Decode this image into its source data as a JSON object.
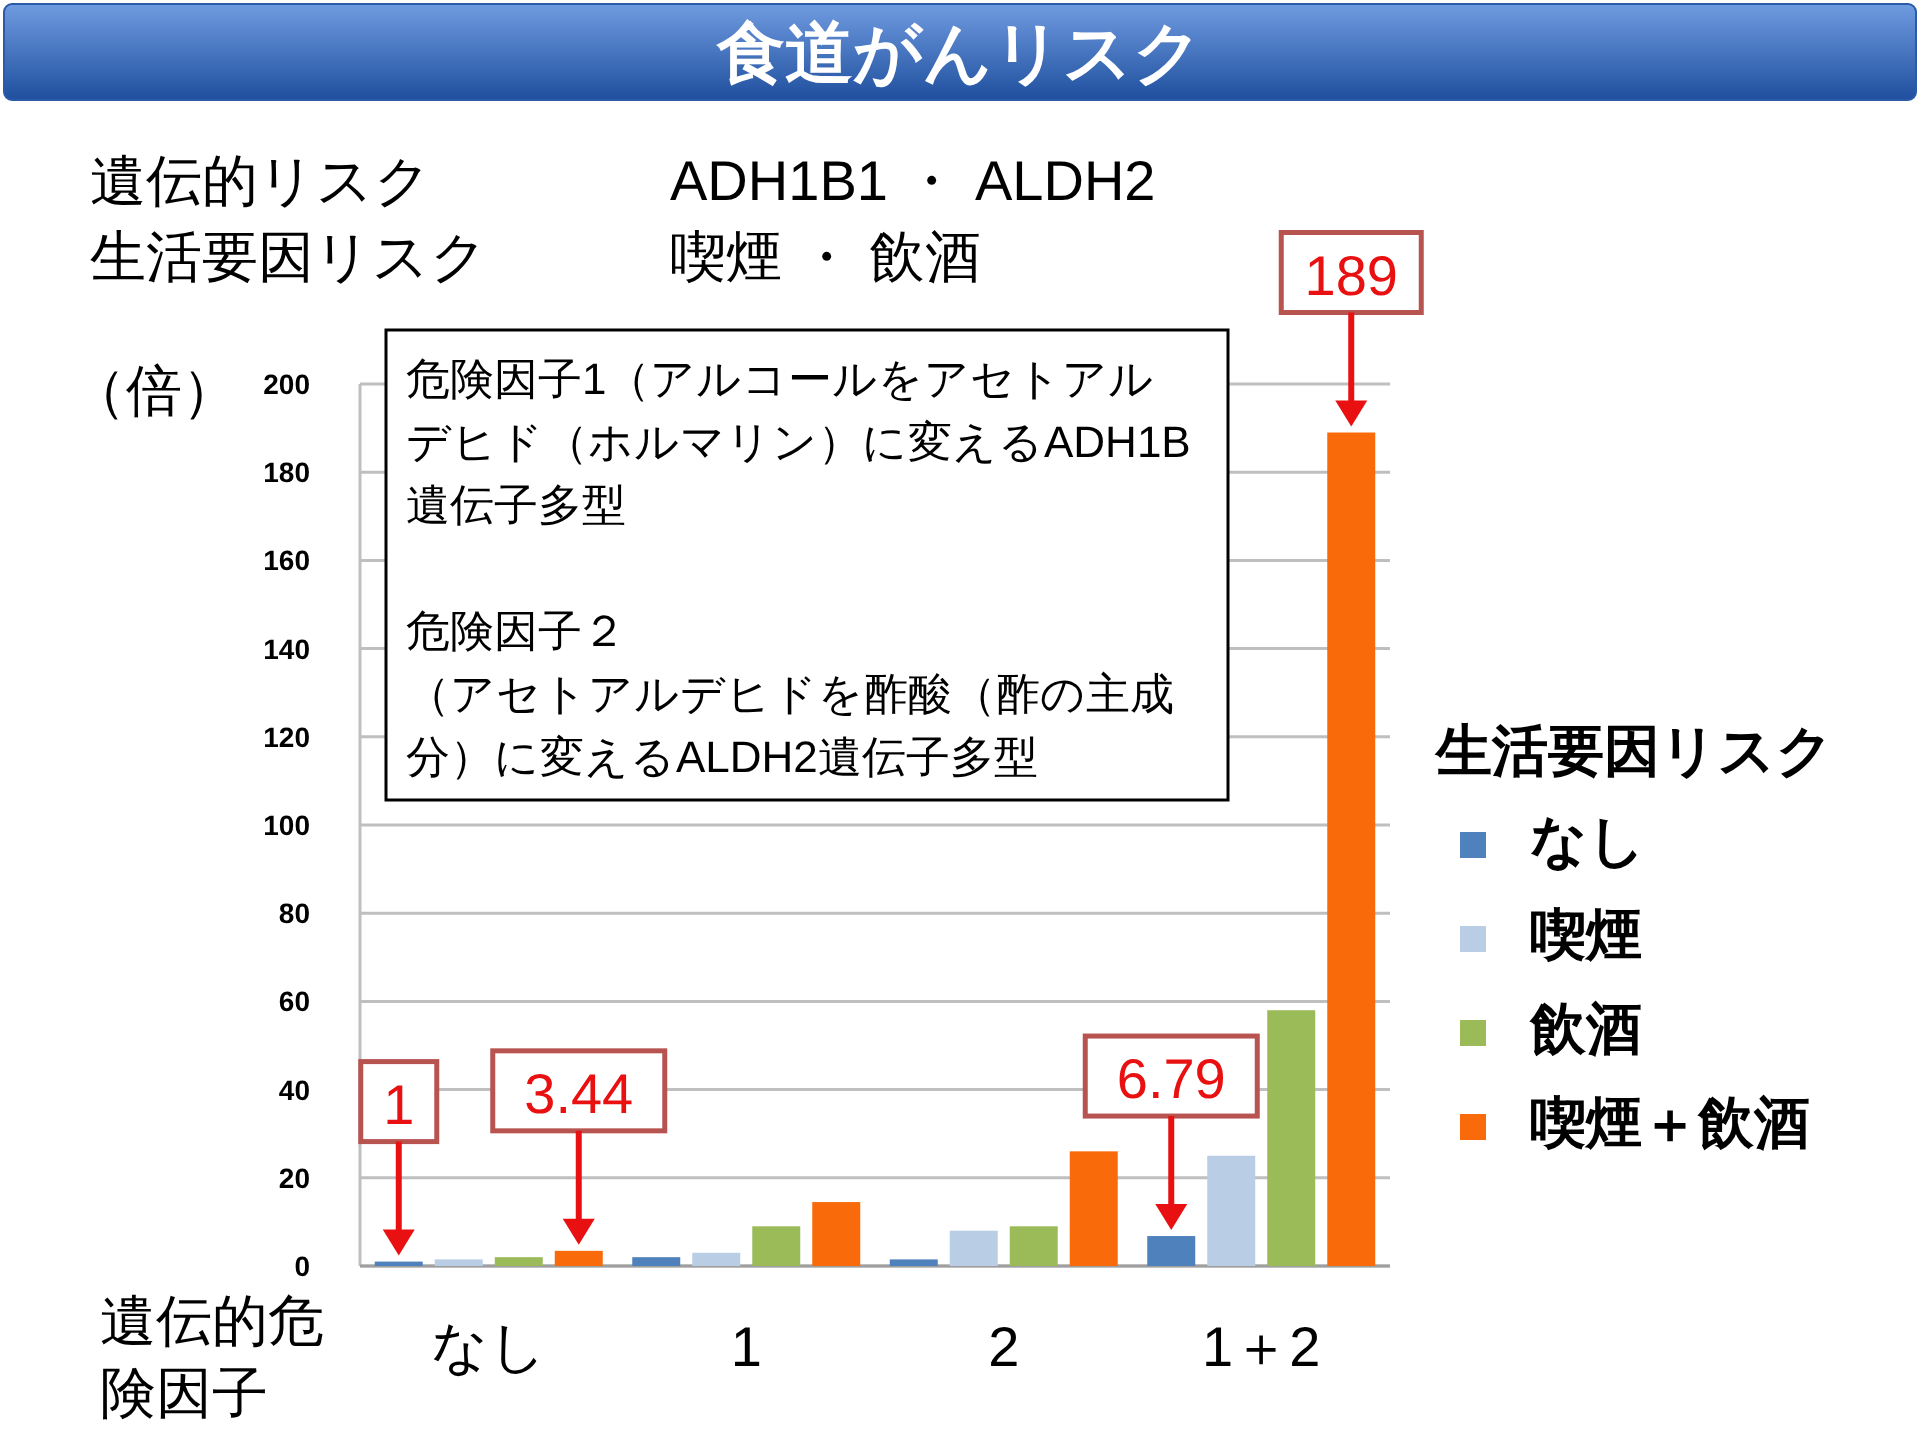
{
  "chart_data": {
    "type": "bar",
    "title": "食道がんリスク",
    "annotations": [
      "遺伝的リスク",
      "ADH1B1 ・ ALDH2",
      "生活要因リスク",
      "喫煙 ・ 飲酒",
      "危険因子1（アルコールをアセトアルデヒド（ホルマリン）に変えるADH1B遺伝子多型",
      "危険因子２",
      "（アセトアルデヒドを酢酸（酢の主成分）に変えるALDH2遺伝子多型"
    ],
    "ylabel": "（倍）",
    "xlabel": "遺伝的危険因子",
    "legend_title": "生活要因リスク",
    "categories": [
      "なし",
      "1",
      "2",
      "1＋2"
    ],
    "series": [
      {
        "name": "なし",
        "color": "#4f81bd",
        "values": [
          1,
          2,
          1.5,
          6.79
        ],
        "value_labels": [
          "1",
          null,
          null,
          "6.79"
        ]
      },
      {
        "name": "喫煙",
        "color": "#b9cde5",
        "values": [
          1.5,
          3,
          8,
          25
        ]
      },
      {
        "name": "飲酒",
        "color": "#9bbb59",
        "values": [
          2,
          9,
          9,
          58
        ]
      },
      {
        "name": "喫煙＋飲酒",
        "color": "#f96b0a",
        "values": [
          3.44,
          14.5,
          26,
          189
        ],
        "value_labels": [
          "3.44",
          null,
          null,
          "189"
        ]
      }
    ],
    "ylim": [
      0,
      200
    ],
    "yticks": [
      0,
      20,
      40,
      60,
      80,
      100,
      120,
      140,
      160,
      180,
      200
    ],
    "grid": "y",
    "legend": "right"
  }
}
